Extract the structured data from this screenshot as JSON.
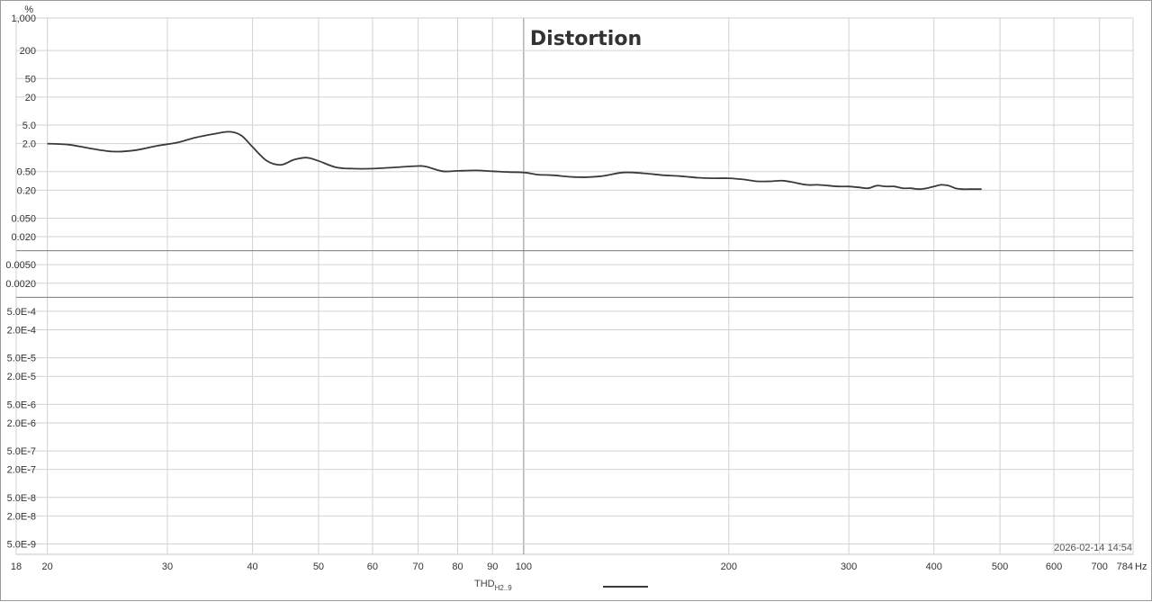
{
  "chart_data": {
    "type": "line",
    "title": "Distortion",
    "xlabel": "",
    "ylabel": "%",
    "x_unit": "Hz",
    "x_scale": "log",
    "y_scale": "log",
    "xlim": [
      18,
      784
    ],
    "ylim": [
      3e-09,
      1000
    ],
    "x_ticks": [
      18,
      20,
      30,
      40,
      50,
      60,
      70,
      80,
      90,
      100,
      200,
      300,
      400,
      500,
      600,
      700,
      784
    ],
    "x_tick_labels": [
      "18",
      "20",
      "30",
      "40",
      "50",
      "60",
      "70",
      "80",
      "90",
      "100",
      "200",
      "300",
      "400",
      "500",
      "600",
      "700",
      "784"
    ],
    "y_ticks": [
      1000,
      200,
      50,
      20,
      5,
      2,
      0.5,
      0.2,
      0.05,
      0.02,
      0.005,
      0.002,
      0.0005,
      0.0002,
      5e-05,
      2e-05,
      5e-06,
      2e-06,
      5e-07,
      2e-07,
      5e-08,
      2e-08,
      5e-09
    ],
    "y_tick_labels": [
      "1,000",
      "200",
      "50",
      "20",
      "5.0",
      "2.0",
      "0.50",
      "0.20",
      "0.050",
      "0.020",
      "0.0050",
      "0.0020",
      "5.0E-4",
      "2.0E-4",
      "5.0E-5",
      "2.0E-5",
      "5.0E-6",
      "2.0E-6",
      "5.0E-7",
      "2.0E-7",
      "5.0E-8",
      "2.0E-8",
      "5.0E-9"
    ],
    "grid": true,
    "legend_position": "bottom-center",
    "timestamp": "2026-02-14 14:54",
    "series": [
      {
        "name": "THD",
        "name_sub": "H2..9",
        "color": "#3a3a3a",
        "x": [
          20,
          21.5,
          23,
          25,
          27,
          29,
          31,
          33,
          35,
          37,
          38.5,
          40,
          42,
          44,
          46,
          48,
          50,
          53,
          56,
          60,
          65,
          70,
          72,
          76,
          80,
          85,
          90,
          95,
          100,
          105,
          110,
          120,
          130,
          140,
          150,
          160,
          170,
          180,
          190,
          200,
          210,
          220,
          230,
          240,
          250,
          260,
          270,
          280,
          290,
          300,
          310,
          320,
          330,
          340,
          350,
          360,
          370,
          380,
          390,
          400,
          410,
          420,
          430,
          440,
          450,
          460,
          470
        ],
        "y": [
          2.0,
          1.9,
          1.6,
          1.35,
          1.45,
          1.8,
          2.1,
          2.7,
          3.2,
          3.6,
          3.0,
          1.7,
          0.85,
          0.7,
          0.9,
          1.0,
          0.85,
          0.62,
          0.58,
          0.58,
          0.62,
          0.66,
          0.64,
          0.51,
          0.52,
          0.53,
          0.51,
          0.49,
          0.48,
          0.43,
          0.42,
          0.38,
          0.4,
          0.48,
          0.46,
          0.42,
          0.4,
          0.37,
          0.36,
          0.36,
          0.34,
          0.31,
          0.31,
          0.32,
          0.29,
          0.26,
          0.26,
          0.25,
          0.24,
          0.24,
          0.23,
          0.22,
          0.25,
          0.24,
          0.24,
          0.22,
          0.22,
          0.21,
          0.22,
          0.24,
          0.26,
          0.25,
          0.22,
          0.21,
          0.21,
          0.21,
          0.21
        ]
      }
    ]
  }
}
